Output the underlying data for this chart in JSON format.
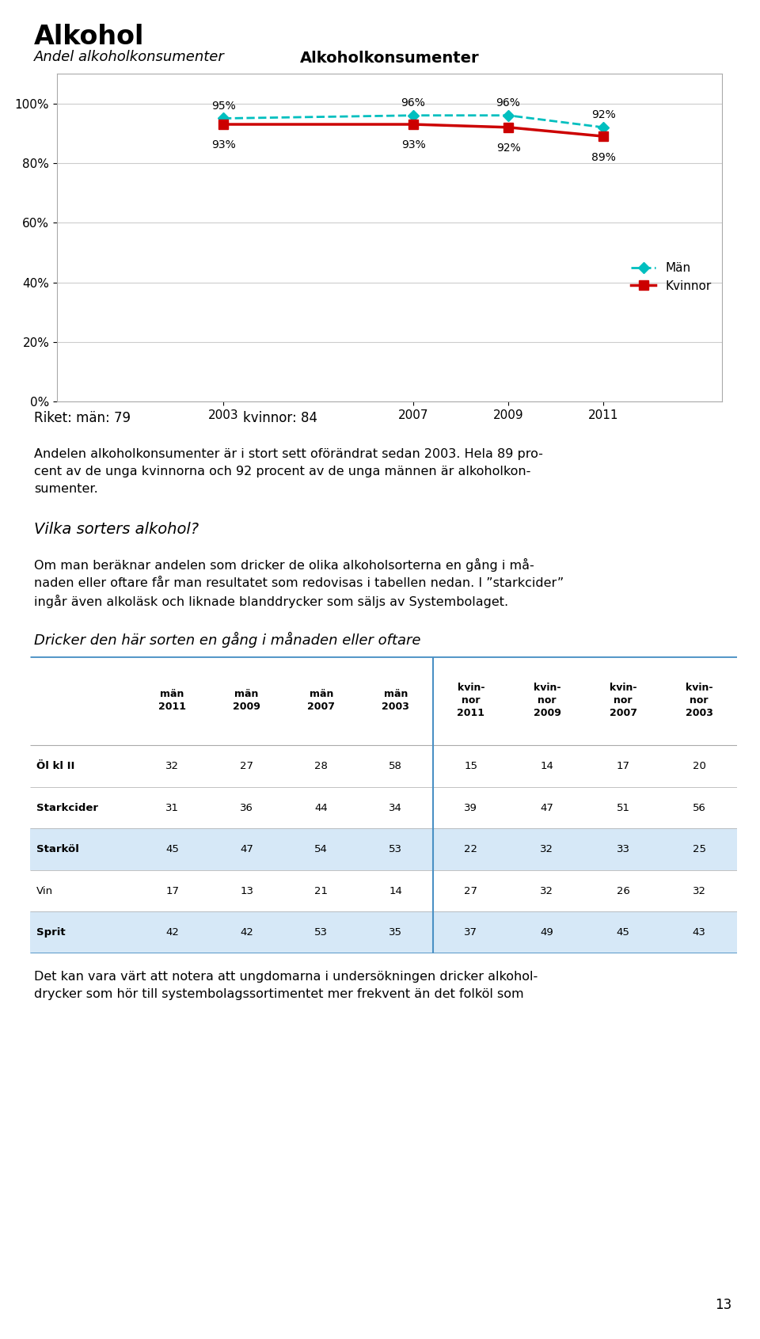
{
  "page_title": "Alkohol",
  "chart_subtitle": "Andel alkoholkonsumenter",
  "chart_title": "Alkoholkonsumenter",
  "years": [
    2003,
    2007,
    2009,
    2011
  ],
  "man_values": [
    95,
    96,
    96,
    92
  ],
  "kvinna_values": [
    93,
    93,
    92,
    89
  ],
  "man_color": "#00BFBF",
  "kvinna_color": "#CC0000",
  "man_label": "Män",
  "kvinna_label": "Kvinnor",
  "yticks": [
    0,
    20,
    40,
    60,
    80,
    100
  ],
  "ytick_labels": [
    "0%",
    "20%",
    "40%",
    "60%",
    "80%",
    "100%"
  ],
  "riket_text_left": "Riket: män: 79",
  "riket_text_right": "kvinnor: 84",
  "para1_bold_part": "alkoholkon-\nsumenter.",
  "para1": "Andelen alkoholkonsumenter är i stort sett oförändrat sedan 2003. Hela 89 pro-\ncent av de unga kvinnorna och 92 procent av de unga männen är alkoholkon-\nsumenter.",
  "section_title": "Vilka sorters alkohol?",
  "para2": "Om man beräknar andelen som dricker de olika alkoholsorterna en gång i må-\nnaden eller oftare får man resultatet som redovisas i tabellen nedan. I ”starkcider” ingår även alkoläsk och liknade blanddrycker som säljs av Systembolaget.",
  "table_title": "Dricker den här sorten en gång i månaden eller oftare",
  "col_headers": [
    "män\n2011",
    "män\n2009",
    "män\n2007",
    "män\n2003",
    "kvin-\nnor\n2011",
    "kvin-\nnor\n2009",
    "kvin-\nnor\n2007",
    "kvin-\nnor\n2003"
  ],
  "row_labels": [
    "Öl kl II",
    "Starkcider",
    "Starköl",
    "Vin",
    "Sprit"
  ],
  "row_label_bold": [
    true,
    true,
    true,
    false,
    true
  ],
  "table_data": [
    [
      32,
      27,
      28,
      58,
      15,
      14,
      17,
      20
    ],
    [
      31,
      36,
      44,
      34,
      39,
      47,
      51,
      56
    ],
    [
      45,
      47,
      54,
      53,
      22,
      32,
      33,
      25
    ],
    [
      17,
      13,
      21,
      14,
      27,
      32,
      26,
      32
    ],
    [
      42,
      42,
      53,
      35,
      37,
      49,
      45,
      43
    ]
  ],
  "row_bg": [
    "#FFFFFF",
    "#FFFFFF",
    "#D6E8F7",
    "#FFFFFF",
    "#D6E8F7"
  ],
  "para3": "Det kan vara värt att notera att ungdomarna i undersökningen dricker alkohol-\ndrycker som hör till systembolagssortimentet mer frekvent än det folköl som",
  "page_number": "13",
  "bg_color": "#FFFFFF",
  "accent_color": "#4A90C4",
  "separator_color": "#4A90C4"
}
